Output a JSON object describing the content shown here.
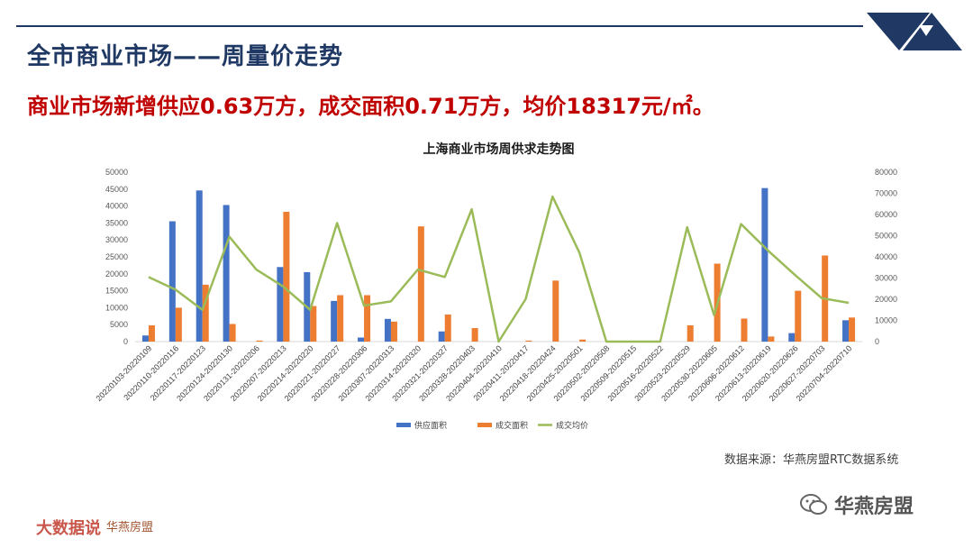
{
  "page": {
    "title": "全市商业市场——周量价走势",
    "headline": "商业市场新增供应0.63万方，成交面积0.71万方，均价18317元/㎡。",
    "source": "数据来源：华燕房盟RTC数据系统",
    "watermark": "华燕房盟",
    "stamp_text": "大数据说",
    "stamp_brand": "华燕房盟",
    "colors": {
      "title": "#1f3864",
      "headline": "#c00000",
      "supply": "#4472c4",
      "deal": "#ed7d31",
      "price": "#9bbb59"
    }
  },
  "chart_data": {
    "type": "bar",
    "title": "上海商业市场周供求走势图",
    "categories": [
      "20220103-20220109",
      "20220110-20220116",
      "20220117-20220123",
      "20220124-20220130",
      "20220131-20220206",
      "20220207-20220213",
      "20220214-20220220",
      "20220221-20220227",
      "20220228-20220306",
      "20220307-20220313",
      "20220314-20220320",
      "20220321-20220327",
      "20220328-20220403",
      "20220404-20220410",
      "20220411-20220417",
      "20220418-20220424",
      "20220425-20220501",
      "20220502-20220508",
      "20220509-20220515",
      "20220516-20220522",
      "20220523-20220529",
      "20220530-20220605",
      "20220606-20220612",
      "20220613-20220619",
      "20220620-20220626",
      "20220627-20220703",
      "20220704-20220710"
    ],
    "series": [
      {
        "name": "供应面积",
        "axis": "left",
        "kind": "bar",
        "values": [
          1800,
          35500,
          44600,
          40300,
          0,
          22000,
          20500,
          12000,
          1200,
          6700,
          0,
          3000,
          0,
          0,
          0,
          0,
          0,
          0,
          0,
          0,
          0,
          0,
          0,
          45300,
          2500,
          0,
          6300
        ]
      },
      {
        "name": "成交面积",
        "axis": "left",
        "kind": "bar",
        "values": [
          4800,
          10000,
          16800,
          5200,
          300,
          38300,
          10500,
          13700,
          13700,
          5900,
          34000,
          8000,
          4000,
          0,
          300,
          18000,
          600,
          0,
          0,
          0,
          4800,
          23000,
          6800,
          1500,
          15000,
          25400,
          7100
        ]
      },
      {
        "name": "成交均价",
        "axis": "right",
        "kind": "line",
        "values": [
          30500,
          24500,
          15000,
          49500,
          34000,
          26000,
          15000,
          56000,
          17000,
          19000,
          34000,
          30500,
          62500,
          0,
          20000,
          68500,
          42000,
          0,
          0,
          0,
          54000,
          12500,
          55500,
          43000,
          31500,
          20500,
          18300
        ]
      }
    ],
    "left_axis": {
      "min": 0,
      "max": 50000,
      "step": 5000,
      "ticks": [
        "0",
        "5000",
        "10000",
        "15000",
        "20000",
        "25000",
        "30000",
        "35000",
        "40000",
        "45000",
        "50000"
      ]
    },
    "right_axis": {
      "min": 0,
      "max": 80000,
      "step": 10000,
      "ticks": [
        "0",
        "10000",
        "20000",
        "30000",
        "40000",
        "50000",
        "60000",
        "70000",
        "80000"
      ]
    },
    "legend_position": "bottom",
    "grid": false
  }
}
